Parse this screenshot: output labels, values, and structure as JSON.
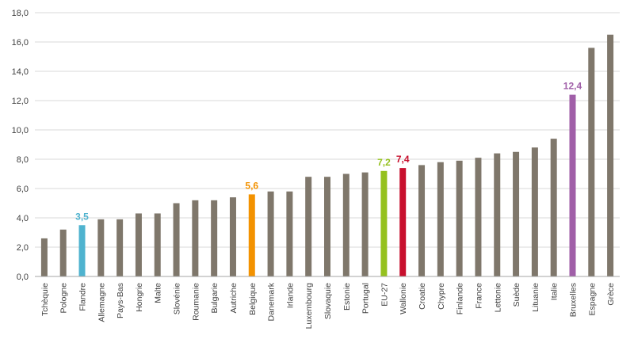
{
  "chart_data": {
    "type": "bar",
    "title": "",
    "xlabel": "",
    "ylabel": "",
    "ylim": [
      0,
      18
    ],
    "yticks": [
      "0,0",
      "2,0",
      "4,0",
      "6,0",
      "8,0",
      "10,0",
      "12,0",
      "14,0",
      "16,0",
      "18,0"
    ],
    "grid": true,
    "legend": "none",
    "categories": [
      "Tchèquie",
      "Pologne",
      "Flandre",
      "Allemagne",
      "Pays-Bas",
      "Hongrie",
      "Malte",
      "Slovénie",
      "Roumanie",
      "Bulgarie",
      "Autriche",
      "Belgique",
      "Danemark",
      "Irlande",
      "Luxembourg",
      "Slovaquie",
      "Estonie",
      "Portugal",
      "EU-27",
      "Wallonie",
      "Croatie",
      "Chypre",
      "Finlande",
      "France",
      "Lettonie",
      "Suède",
      "Lituanie",
      "Italie",
      "Bruxelles",
      "Espagne",
      "Grèce"
    ],
    "values": [
      2.6,
      3.2,
      3.5,
      3.9,
      3.9,
      4.3,
      4.3,
      5.0,
      5.2,
      5.2,
      5.4,
      5.6,
      5.8,
      5.8,
      6.8,
      6.8,
      7.0,
      7.1,
      7.2,
      7.4,
      7.6,
      7.8,
      7.9,
      8.1,
      8.4,
      8.5,
      8.8,
      9.4,
      12.4,
      15.6,
      16.5
    ],
    "default_color": "#7f776b",
    "highlights": [
      {
        "category": "Flandre",
        "label": "3,5",
        "color": "#4fb3cf"
      },
      {
        "category": "Belgique",
        "label": "5,6",
        "color": "#f39200"
      },
      {
        "category": "EU-27",
        "label": "7,2",
        "color": "#95c11f"
      },
      {
        "category": "Wallonie",
        "label": "7,4",
        "color": "#c8102e"
      },
      {
        "category": "Bruxelles",
        "label": "12,4",
        "color": "#a05fa8"
      }
    ]
  }
}
